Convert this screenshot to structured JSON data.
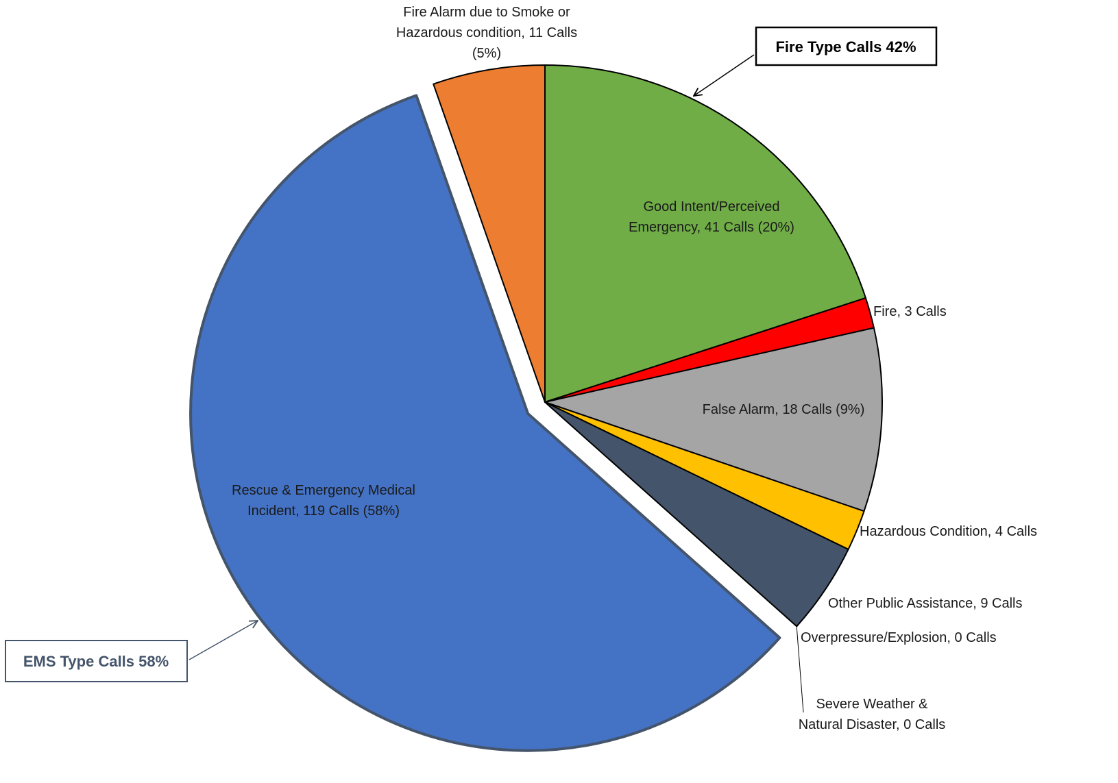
{
  "chart_data": {
    "type": "pie",
    "unit": "Calls",
    "slices": [
      {
        "name": "Good Intent/Perceived Emergency",
        "value": 41,
        "percent": 20,
        "color": "#70AD47",
        "group": "Fire Type Calls",
        "label_lines": [
          "Good Intent/Perceived",
          "Emergency, 41 Calls (20%)"
        ]
      },
      {
        "name": "Fire",
        "value": 3,
        "color": "#FF0000",
        "group": "Fire Type Calls",
        "label_lines": [
          "Fire, 3 Calls"
        ]
      },
      {
        "name": "False Alarm",
        "value": 18,
        "percent": 9,
        "color": "#A5A5A5",
        "group": "Fire Type Calls",
        "label_lines": [
          "False Alarm, 18 Calls (9%)"
        ]
      },
      {
        "name": "Hazardous Condition",
        "value": 4,
        "color": "#FFC000",
        "group": "Fire Type Calls",
        "label_lines": [
          "Hazardous Condition, 4 Calls"
        ]
      },
      {
        "name": "Other Public Assistance",
        "value": 9,
        "color": "#44546A",
        "group": "Fire Type Calls",
        "label_lines": [
          "Other Public Assistance, 9 Calls"
        ]
      },
      {
        "name": "Overpressure/Explosion",
        "value": 0,
        "color": "#44546A",
        "group": "Fire Type Calls",
        "label_lines": [
          "Overpressure/Explosion, 0 Calls"
        ]
      },
      {
        "name": "Severe Weather & Natural Disaster",
        "value": 0,
        "color": "#44546A",
        "group": "Fire Type Calls",
        "label_lines": [
          "Severe Weather &",
          "Natural Disaster, 0 Calls"
        ]
      },
      {
        "name": "Rescue & Emergency Medical Incident",
        "value": 119,
        "percent": 58,
        "color": "#4472C4",
        "group": "EMS Type Calls",
        "exploded": true,
        "label_lines": [
          "Rescue & Emergency Medical",
          "Incident, 119 Calls (58%)"
        ]
      },
      {
        "name": "Fire Alarm due to Smoke or Hazardous condition",
        "value": 11,
        "percent": 5,
        "color": "#ED7D31",
        "group": "Fire Type Calls",
        "label_lines": [
          "Fire Alarm due to Smoke or",
          "Hazardous condition, 11 Calls",
          "(5%)"
        ]
      }
    ],
    "group_labels": [
      {
        "text": "Fire Type Calls 42%",
        "color": "#000000"
      },
      {
        "text": "EMS Type Calls 58%",
        "color": "#44546A"
      }
    ],
    "title": "",
    "legend": "none"
  }
}
